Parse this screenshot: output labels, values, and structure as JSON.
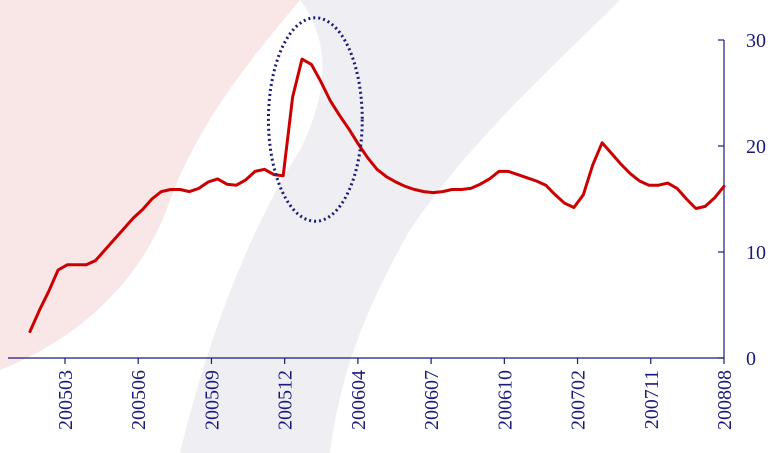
{
  "chart_data": {
    "type": "line",
    "title": "",
    "xlabel": "",
    "ylabel": "",
    "ylim": [
      0,
      30
    ],
    "yticks": [
      0,
      10,
      20,
      30
    ],
    "y_tick_labels": [
      "0",
      "10",
      "20",
      "30"
    ],
    "y_axis_side": "right",
    "x_tick_labels": [
      "200503",
      "200506",
      "200509",
      "200512",
      "200604",
      "200607",
      "200610",
      "200702",
      "200711",
      "200808"
    ],
    "grid": false,
    "legend": "none",
    "series": [
      {
        "color": "#cc0000",
        "values": [
          2.5,
          4.5,
          6.3,
          8.3,
          8.8,
          8.8,
          8.8,
          9.2,
          10.2,
          11.2,
          12.2,
          13.2,
          14.0,
          15.0,
          15.7,
          15.9,
          15.9,
          15.7,
          16.0,
          16.6,
          16.9,
          16.4,
          16.3,
          16.8,
          17.6,
          17.8,
          17.3,
          17.2,
          24.6,
          28.2,
          27.7,
          26.1,
          24.3,
          22.9,
          21.6,
          20.2,
          18.9,
          17.8,
          17.1,
          16.6,
          16.2,
          15.9,
          15.7,
          15.6,
          15.7,
          15.9,
          15.9,
          16.0,
          16.4,
          16.9,
          17.6,
          17.6,
          17.3,
          17.0,
          16.7,
          16.3,
          15.4,
          14.6,
          14.2,
          15.4,
          18.2,
          20.3,
          19.3,
          18.3,
          17.4,
          16.7,
          16.3,
          16.3,
          16.5,
          16.0,
          15.0,
          14.1,
          14.3,
          15.1,
          16.2
        ]
      }
    ],
    "annotations": [
      {
        "type": "ellipse",
        "style": "dotted",
        "color": "#1a1a7a",
        "cx": 30,
        "cy": 22.5,
        "rx": 5.0,
        "ry": 9.6
      }
    ]
  },
  "colors": {
    "axis": "#1a1a7a",
    "tick_label": "#1a1a7a",
    "watermark_red": "#f7dcdc",
    "watermark_gray": "#e6e6ee"
  }
}
